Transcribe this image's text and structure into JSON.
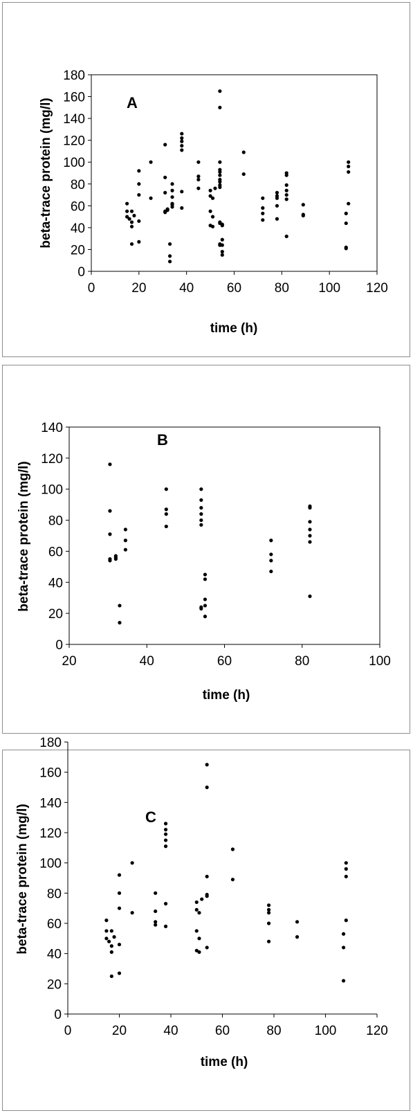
{
  "chart_data": [
    {
      "type": "scatter",
      "title": "A",
      "xlabel": "time (h)",
      "ylabel": "beta-trace protein (mg/l)",
      "xlim": [
        0,
        120
      ],
      "ylim": [
        0,
        180
      ],
      "xticks": [
        "0",
        "20",
        "40",
        "60",
        "80",
        "100",
        "120"
      ],
      "yticks": [
        "0",
        "20",
        "40",
        "60",
        "80",
        "100",
        "120",
        "140",
        "160",
        "180"
      ],
      "grid": false,
      "points": [
        [
          15,
          62
        ],
        [
          15,
          55
        ],
        [
          15,
          50
        ],
        [
          16,
          48
        ],
        [
          17,
          55
        ],
        [
          17,
          45
        ],
        [
          17,
          41
        ],
        [
          17,
          25
        ],
        [
          18,
          51
        ],
        [
          20,
          92
        ],
        [
          20,
          80
        ],
        [
          20,
          70
        ],
        [
          20,
          46
        ],
        [
          20,
          27
        ],
        [
          25,
          100
        ],
        [
          25,
          67
        ],
        [
          31,
          116
        ],
        [
          31,
          86
        ],
        [
          31,
          72
        ],
        [
          31,
          55
        ],
        [
          31,
          54
        ],
        [
          32,
          57
        ],
        [
          32,
          56
        ],
        [
          33,
          25
        ],
        [
          33,
          14
        ],
        [
          33,
          9
        ],
        [
          34,
          80
        ],
        [
          34,
          74
        ],
        [
          34,
          68
        ],
        [
          34,
          61
        ],
        [
          34,
          59
        ],
        [
          34,
          62
        ],
        [
          38,
          126
        ],
        [
          38,
          122
        ],
        [
          38,
          119
        ],
        [
          38,
          115
        ],
        [
          38,
          111
        ],
        [
          38,
          73
        ],
        [
          38,
          58
        ],
        [
          45,
          100
        ],
        [
          45,
          87
        ],
        [
          45,
          84
        ],
        [
          45,
          76
        ],
        [
          50,
          74
        ],
        [
          50,
          69
        ],
        [
          50,
          55
        ],
        [
          50,
          42
        ],
        [
          51,
          50
        ],
        [
          51,
          41
        ],
        [
          51,
          67
        ],
        [
          52,
          76
        ],
        [
          54,
          165
        ],
        [
          54,
          150
        ],
        [
          54,
          100
        ],
        [
          54,
          93
        ],
        [
          54,
          91
        ],
        [
          54,
          88
        ],
        [
          54,
          84
        ],
        [
          54,
          82
        ],
        [
          54,
          79
        ],
        [
          54,
          77
        ],
        [
          54,
          45
        ],
        [
          54,
          44
        ],
        [
          54,
          25
        ],
        [
          54,
          24
        ],
        [
          55,
          43
        ],
        [
          55,
          29
        ],
        [
          55,
          24
        ],
        [
          55,
          18
        ],
        [
          55,
          15
        ],
        [
          55,
          42
        ],
        [
          64,
          109
        ],
        [
          64,
          89
        ],
        [
          72,
          67
        ],
        [
          72,
          58
        ],
        [
          72,
          53
        ],
        [
          72,
          47
        ],
        [
          78,
          72
        ],
        [
          78,
          69
        ],
        [
          78,
          67
        ],
        [
          78,
          60
        ],
        [
          78,
          48
        ],
        [
          82,
          90
        ],
        [
          82,
          88
        ],
        [
          82,
          79
        ],
        [
          82,
          74
        ],
        [
          82,
          70
        ],
        [
          82,
          66
        ],
        [
          82,
          32
        ],
        [
          89,
          61
        ],
        [
          89,
          52
        ],
        [
          89,
          51
        ],
        [
          107,
          53
        ],
        [
          107,
          44
        ],
        [
          107,
          22
        ],
        [
          107,
          21
        ],
        [
          108,
          100
        ],
        [
          108,
          96
        ],
        [
          108,
          91
        ],
        [
          108,
          62
        ]
      ]
    },
    {
      "type": "scatter",
      "title": "B",
      "xlabel": "time (h)",
      "ylabel": "beta-trace protein (mg/l)",
      "xlim": [
        20,
        100
      ],
      "ylim": [
        0,
        140
      ],
      "xticks": [
        "20",
        "40",
        "60",
        "80",
        "100"
      ],
      "yticks": [
        "0",
        "20",
        "40",
        "60",
        "80",
        "100",
        "120",
        "140"
      ],
      "grid": false,
      "points": [
        [
          30.5,
          116
        ],
        [
          30.5,
          86
        ],
        [
          30.5,
          71
        ],
        [
          30.5,
          55
        ],
        [
          30.5,
          54
        ],
        [
          32,
          57
        ],
        [
          32,
          56
        ],
        [
          32,
          55
        ],
        [
          33,
          25
        ],
        [
          33,
          14
        ],
        [
          34.5,
          74
        ],
        [
          34.5,
          67
        ],
        [
          34.5,
          61
        ],
        [
          45,
          100
        ],
        [
          45,
          87
        ],
        [
          45,
          84
        ],
        [
          45,
          76
        ],
        [
          54,
          100
        ],
        [
          54,
          93
        ],
        [
          54,
          88
        ],
        [
          54,
          84
        ],
        [
          54,
          80
        ],
        [
          54,
          77
        ],
        [
          54,
          24
        ],
        [
          54,
          23
        ],
        [
          55,
          45
        ],
        [
          55,
          42
        ],
        [
          55,
          29
        ],
        [
          55,
          25
        ],
        [
          55,
          18
        ],
        [
          72,
          67
        ],
        [
          72,
          58
        ],
        [
          72,
          54
        ],
        [
          72,
          47
        ],
        [
          82,
          89
        ],
        [
          82,
          88
        ],
        [
          82,
          79
        ],
        [
          82,
          74
        ],
        [
          82,
          70
        ],
        [
          82,
          66
        ],
        [
          82,
          31
        ]
      ]
    },
    {
      "type": "scatter",
      "title": "C",
      "xlabel": "time (h)",
      "ylabel": "beta-trace protein (mg/l)",
      "xlim": [
        0,
        120
      ],
      "ylim": [
        0,
        180
      ],
      "xticks": [
        "0",
        "20",
        "40",
        "60",
        "80",
        "100",
        "120"
      ],
      "yticks": [
        "0",
        "20",
        "40",
        "60",
        "80",
        "100",
        "120",
        "140",
        "160",
        "180"
      ],
      "grid": false,
      "points": [
        [
          15,
          62
        ],
        [
          15,
          55
        ],
        [
          15,
          50
        ],
        [
          16,
          48
        ],
        [
          17,
          55
        ],
        [
          17,
          45
        ],
        [
          17,
          41
        ],
        [
          17,
          25
        ],
        [
          18,
          51
        ],
        [
          20,
          92
        ],
        [
          20,
          80
        ],
        [
          20,
          70
        ],
        [
          20,
          46
        ],
        [
          20,
          27
        ],
        [
          25,
          100
        ],
        [
          25,
          67
        ],
        [
          34,
          80
        ],
        [
          34,
          68
        ],
        [
          34,
          61
        ],
        [
          34,
          59
        ],
        [
          38,
          126
        ],
        [
          38,
          122
        ],
        [
          38,
          119
        ],
        [
          38,
          115
        ],
        [
          38,
          111
        ],
        [
          38,
          73
        ],
        [
          38,
          58
        ],
        [
          50,
          74
        ],
        [
          50,
          69
        ],
        [
          50,
          55
        ],
        [
          50,
          42
        ],
        [
          51,
          41
        ],
        [
          51,
          67
        ],
        [
          51,
          50
        ],
        [
          52,
          76
        ],
        [
          54,
          165
        ],
        [
          54,
          150
        ],
        [
          54,
          91
        ],
        [
          54,
          79
        ],
        [
          54,
          78
        ],
        [
          54,
          44
        ],
        [
          64,
          109
        ],
        [
          64,
          89
        ],
        [
          78,
          72
        ],
        [
          78,
          69
        ],
        [
          78,
          67
        ],
        [
          78,
          60
        ],
        [
          78,
          48
        ],
        [
          89,
          61
        ],
        [
          89,
          51
        ],
        [
          107,
          53
        ],
        [
          107,
          44
        ],
        [
          107,
          22
        ],
        [
          108,
          100
        ],
        [
          108,
          96
        ],
        [
          108,
          91
        ],
        [
          108,
          62
        ]
      ]
    }
  ]
}
